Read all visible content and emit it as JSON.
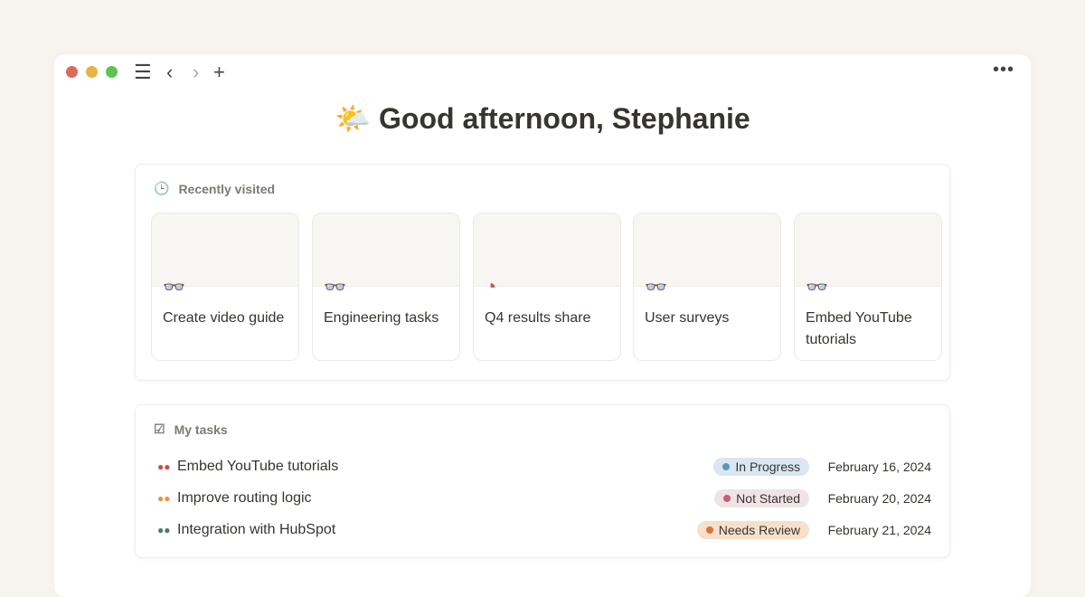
{
  "toolbar": {
    "menu_icon": "hamburger-icon",
    "back_icon": "chevron-left-icon",
    "forward_icon": "chevron-right-icon",
    "new_icon": "plus-icon",
    "more_icon": "ellipsis-icon"
  },
  "greeting": {
    "emoji": "🌤️",
    "text": "Good afternoon, Stephanie"
  },
  "recent": {
    "title": "Recently visited",
    "items": [
      {
        "label": "Create video guide",
        "icon": "binoculars-icon",
        "color": "#4f7d5c"
      },
      {
        "label": "Engineering tasks",
        "icon": "binoculars-icon",
        "color": "#4f7d5c"
      },
      {
        "label": "Q4 results share",
        "icon": "pie-chart-icon",
        "color": "#d44c47"
      },
      {
        "label": "User surveys",
        "icon": "binoculars-icon",
        "color": "#9065b0"
      },
      {
        "label": "Embed YouTube tutorials",
        "icon": "binoculars-icon",
        "color": "#d44c47"
      }
    ]
  },
  "tasks": {
    "title": "My tasks",
    "items": [
      {
        "name": "Embed YouTube tutorials",
        "status": "In Progress",
        "date": "February 16, 2024",
        "icon_color": "#d44c47",
        "bg": "#d8e7f1",
        "dot": "#5b97bd"
      },
      {
        "name": "Improve routing logic",
        "status": "Not Started",
        "date": "February 20, 2024",
        "icon_color": "#e5963c",
        "bg": "#efe3e6",
        "dot": "#c4606f"
      },
      {
        "name": "Integration with HubSpot",
        "status": "Needs Review",
        "date": "February 21, 2024",
        "icon_color": "#4f7d5c",
        "bg": "#f6dfcb",
        "dot": "#d9733b"
      }
    ]
  }
}
